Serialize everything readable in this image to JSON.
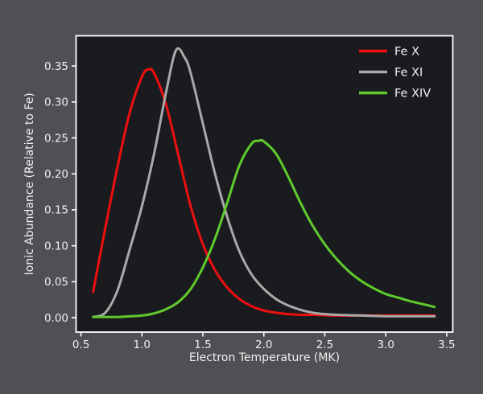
{
  "figure": {
    "background": "#4f5054",
    "plot_background": "#1a1b1e",
    "axis_color": "#ffffff",
    "text_color": "#efefef"
  },
  "chart_data": {
    "type": "line",
    "title": "",
    "xlabel": "Electron Temperature (MK)",
    "ylabel": "Ionic Abundance (Relative to Fe)",
    "xlim": [
      0.46,
      3.55
    ],
    "ylim": [
      -0.02,
      0.392
    ],
    "x_ticks": [
      0.5,
      1.0,
      1.5,
      2.0,
      2.5,
      3.0,
      3.5
    ],
    "x_tick_labels": [
      "0.5",
      "1.0",
      "1.5",
      "2.0",
      "2.5",
      "3.0",
      "3.5"
    ],
    "y_ticks": [
      0.0,
      0.05,
      0.1,
      0.15,
      0.2,
      0.25,
      0.3,
      0.35
    ],
    "y_tick_labels": [
      "0.00",
      "0.05",
      "0.10",
      "0.15",
      "0.20",
      "0.25",
      "0.30",
      "0.35"
    ],
    "grid": false,
    "legend_position": "upper right",
    "series": [
      {
        "name": "Fe X",
        "color": "#ee0f0f",
        "peak": {
          "x": 1.05,
          "y": 0.345
        },
        "x": [
          0.6,
          0.7,
          0.8,
          0.9,
          1.0,
          1.05,
          1.1,
          1.2,
          1.3,
          1.4,
          1.5,
          1.6,
          1.7,
          1.8,
          1.9,
          2.0,
          2.1,
          2.2,
          2.3,
          2.4,
          2.6,
          2.8,
          3.0,
          3.2,
          3.4
        ],
        "y": [
          0.036,
          0.125,
          0.21,
          0.285,
          0.335,
          0.345,
          0.34,
          0.295,
          0.225,
          0.155,
          0.102,
          0.066,
          0.042,
          0.026,
          0.016,
          0.01,
          0.007,
          0.005,
          0.004,
          0.004,
          0.003,
          0.003,
          0.003,
          0.003,
          0.003
        ]
      },
      {
        "name": "Fe XI",
        "color": "#a9a9a9",
        "peak": {
          "x": 1.28,
          "y": 0.372
        },
        "x": [
          0.6,
          0.7,
          0.8,
          0.9,
          1.0,
          1.1,
          1.2,
          1.28,
          1.35,
          1.4,
          1.5,
          1.6,
          1.7,
          1.8,
          1.9,
          2.0,
          2.1,
          2.2,
          2.3,
          2.4,
          2.5,
          2.6,
          2.8,
          3.0,
          3.2,
          3.4
        ],
        "y": [
          0.001,
          0.007,
          0.038,
          0.095,
          0.155,
          0.228,
          0.315,
          0.372,
          0.362,
          0.34,
          0.27,
          0.2,
          0.14,
          0.092,
          0.06,
          0.04,
          0.026,
          0.017,
          0.011,
          0.007,
          0.005,
          0.004,
          0.003,
          0.002,
          0.002,
          0.002
        ]
      },
      {
        "name": "Fe XIV",
        "color": "#5fcb2d",
        "peak": {
          "x": 1.96,
          "y": 0.246
        },
        "x": [
          0.6,
          0.8,
          0.9,
          1.0,
          1.1,
          1.2,
          1.3,
          1.4,
          1.5,
          1.6,
          1.7,
          1.8,
          1.9,
          1.96,
          2.0,
          2.1,
          2.2,
          2.3,
          2.4,
          2.5,
          2.6,
          2.7,
          2.8,
          2.9,
          3.0,
          3.1,
          3.2,
          3.3,
          3.4
        ],
        "y": [
          0.001,
          0.001,
          0.002,
          0.003,
          0.006,
          0.012,
          0.022,
          0.04,
          0.07,
          0.11,
          0.16,
          0.212,
          0.242,
          0.246,
          0.245,
          0.228,
          0.196,
          0.16,
          0.128,
          0.102,
          0.081,
          0.064,
          0.051,
          0.041,
          0.033,
          0.028,
          0.023,
          0.019,
          0.015
        ]
      }
    ]
  }
}
